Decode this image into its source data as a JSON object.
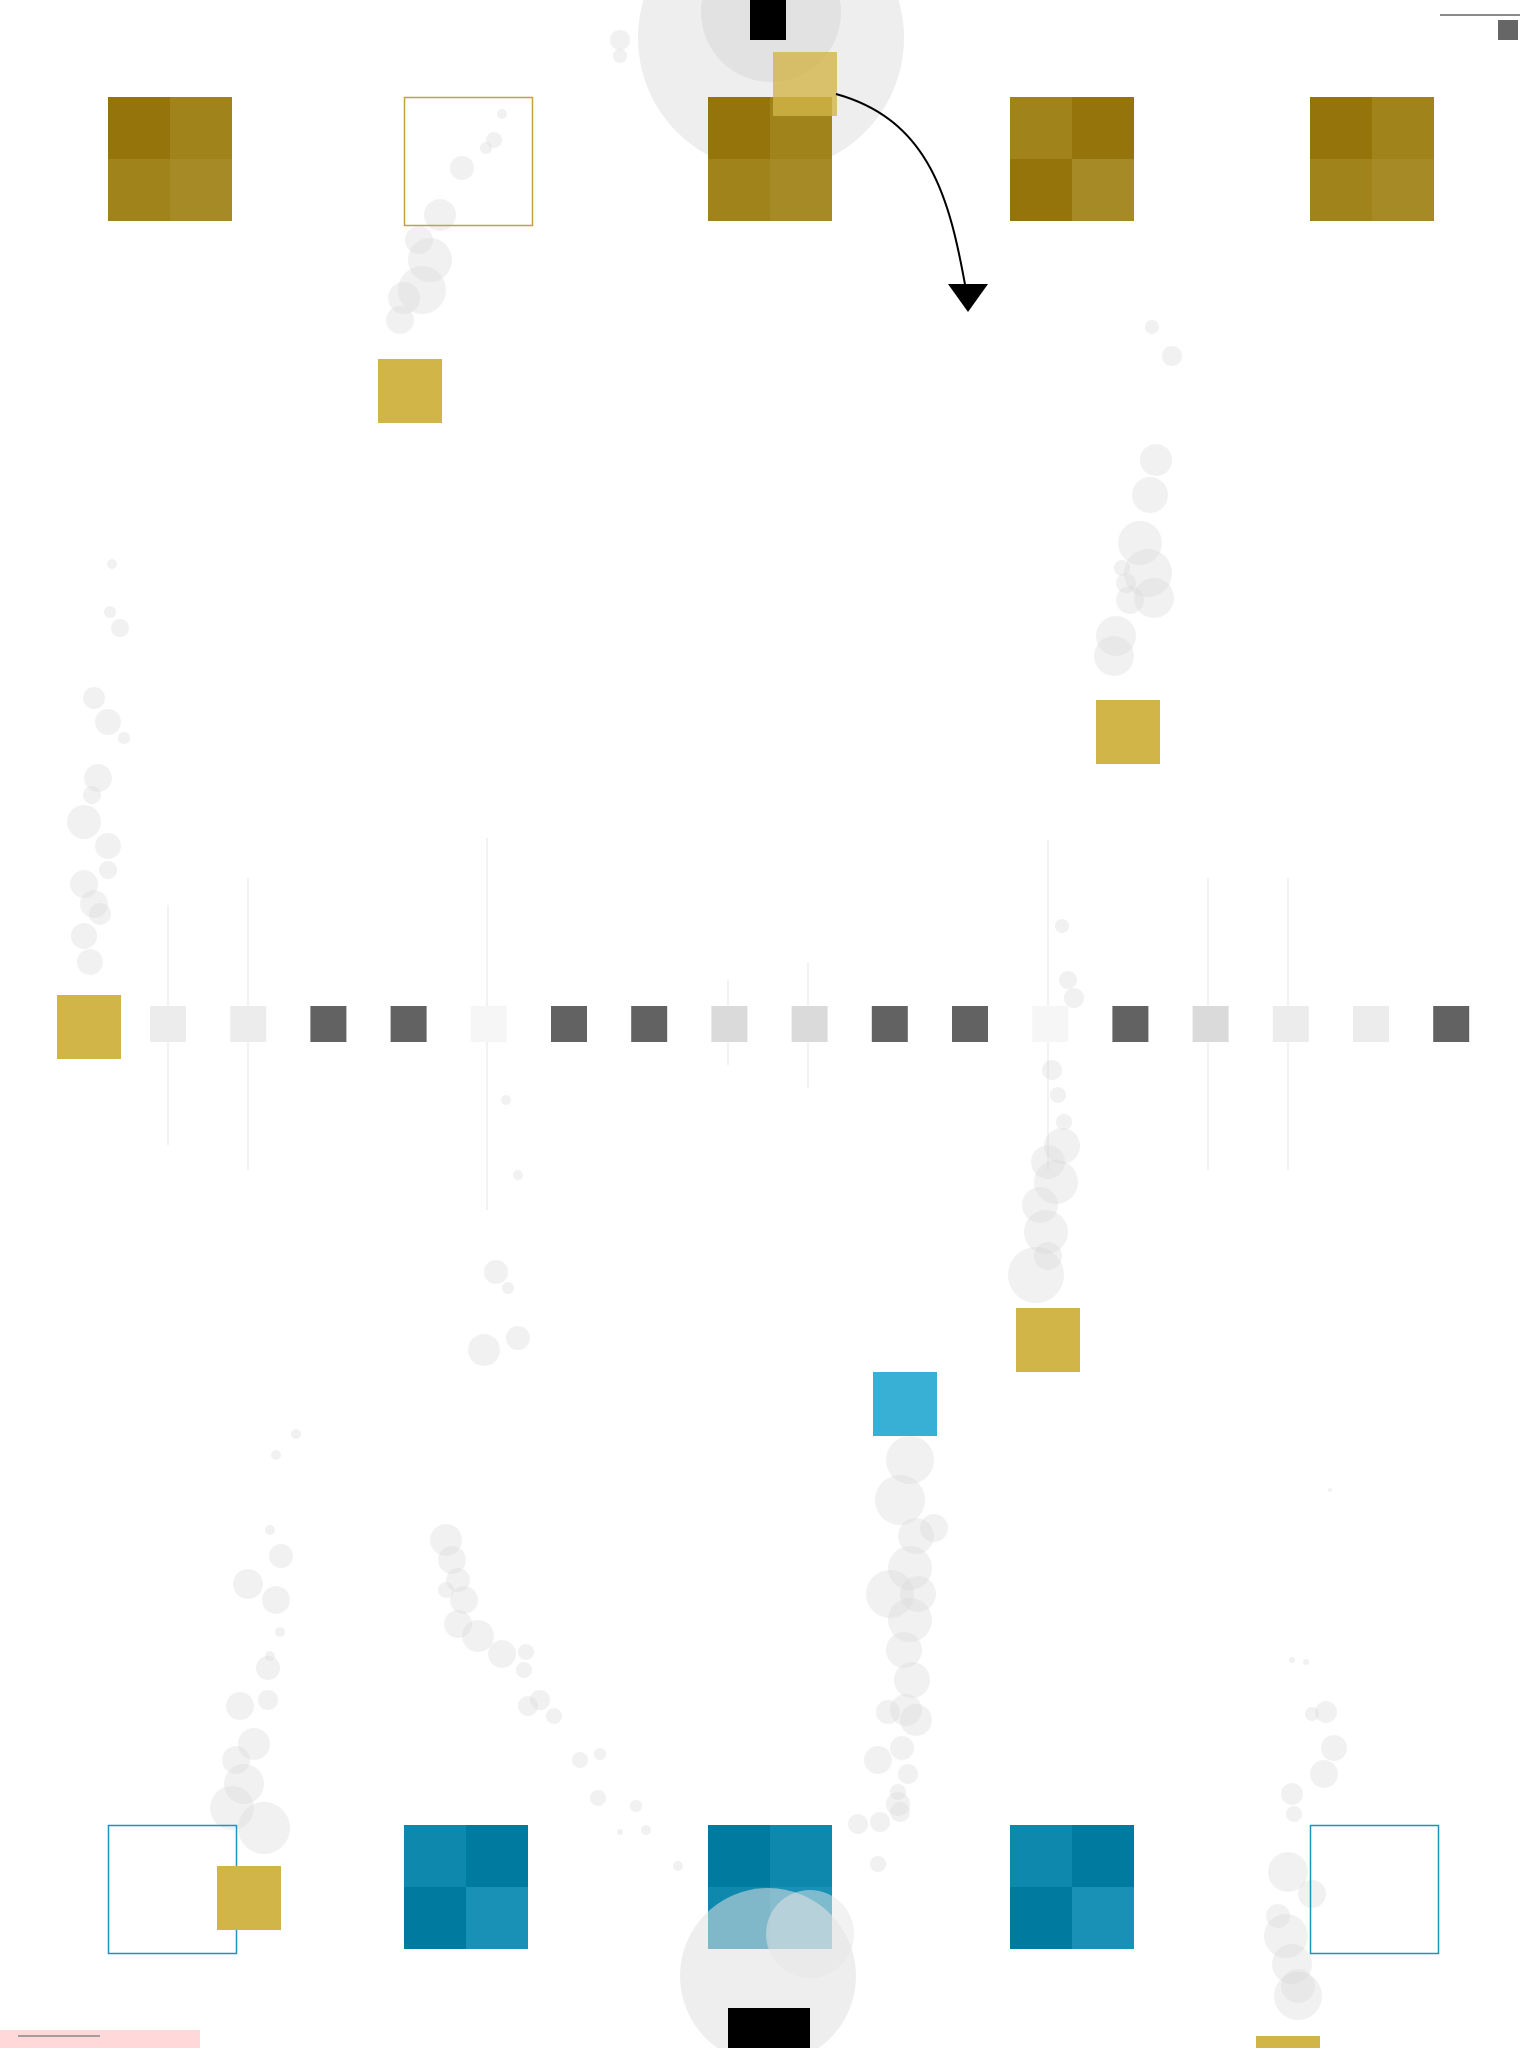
{
  "colors": {
    "gold_dark": "#94740b",
    "gold_mid": "#a1831c",
    "gold_light": "#a68a25",
    "gold_marker": "#d2b548",
    "gold_outline": "#c3a23a",
    "teal_dark": "#007ba0",
    "teal_mid": "#0f88ae",
    "teal_light": "#1990b6",
    "teal_marker": "#38b0d6",
    "teal_outline": "#1c95bb",
    "rail_dark": "#626262",
    "rail_light": "#ececec",
    "rail_faint": "#f6f6f6",
    "rail_mid": "#dadada",
    "bubble": "#d8d8d8",
    "arrow": "#000000",
    "hud_bar": "#ffd9d9"
  },
  "top_row": {
    "team": "gold",
    "homes": [
      {
        "id": "gold-home-1",
        "state": "filled"
      },
      {
        "id": "gold-home-2",
        "state": "empty"
      },
      {
        "id": "gold-home-3",
        "state": "filled"
      },
      {
        "id": "gold-home-4",
        "state": "filled"
      },
      {
        "id": "gold-home-5",
        "state": "filled"
      }
    ]
  },
  "bottom_row": {
    "team": "teal",
    "homes": [
      {
        "id": "teal-home-1",
        "state": "empty"
      },
      {
        "id": "teal-home-2",
        "state": "filled"
      },
      {
        "id": "teal-home-3",
        "state": "filled"
      },
      {
        "id": "teal-home-4",
        "state": "filled"
      },
      {
        "id": "teal-home-5",
        "state": "empty"
      }
    ]
  },
  "center_rail": {
    "cells": [
      "gold-piece",
      "light",
      "light",
      "dark",
      "dark",
      "faint",
      "dark",
      "dark",
      "mid",
      "mid",
      "dark",
      "dark",
      "faint",
      "dark",
      "mid",
      "light",
      "light",
      "dark"
    ]
  },
  "pieces": [
    {
      "team": "gold",
      "name": "gold-piece-falling-left"
    },
    {
      "team": "gold",
      "name": "gold-piece-right"
    },
    {
      "team": "gold",
      "name": "gold-piece-mid"
    },
    {
      "team": "gold",
      "name": "gold-piece-bottom-left"
    },
    {
      "team": "gold",
      "name": "gold-piece-bottom-right"
    },
    {
      "team": "gold",
      "name": "gold-piece-top-launcher"
    },
    {
      "team": "teal",
      "name": "teal-piece"
    }
  ],
  "launchers": [
    {
      "name": "top-launcher",
      "position": "top"
    },
    {
      "name": "bottom-launcher",
      "position": "bottom"
    }
  ],
  "hud": {
    "corner_indicator": "menu-icon",
    "bottom_bar": "status-bar"
  }
}
